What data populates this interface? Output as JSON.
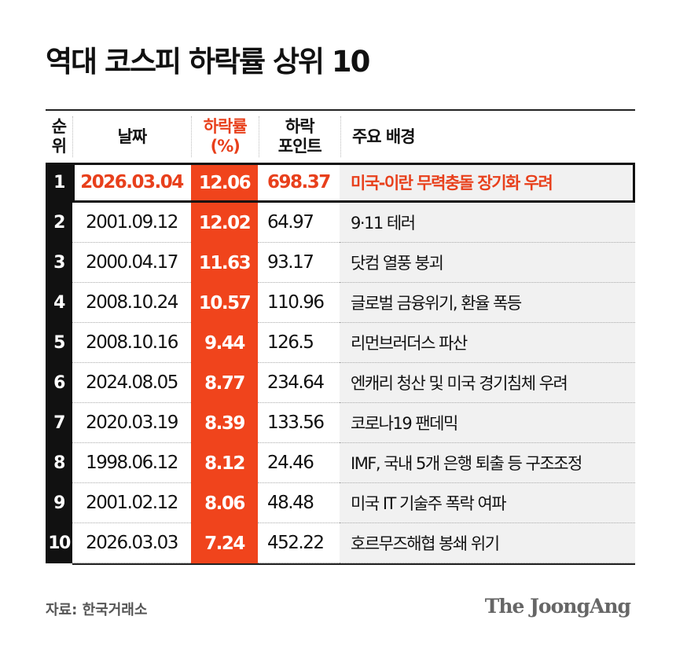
{
  "title": "역대 코스피 하락률 상위 10",
  "chart_data": {
    "type": "table",
    "title": "역대 코스피 하락률 상위 10",
    "columns": [
      "순위",
      "날짜",
      "하락률 (%)",
      "하락 포인트",
      "주요 배경"
    ],
    "header": {
      "rank": "순위",
      "date": "날짜",
      "pct_line1": "하락률",
      "pct_line2": "(%)",
      "pts_line1": "하락",
      "pts_line2": "포인트",
      "background": "주요 배경"
    },
    "rows": [
      {
        "rank": "1",
        "date": "2026.03.04",
        "pct": "12.06",
        "points": "698.37",
        "background": "미국-이란 무력충돌 장기화 우려",
        "highlight": true
      },
      {
        "rank": "2",
        "date": "2001.09.12",
        "pct": "12.02",
        "points": "64.97",
        "background": "9·11 테러"
      },
      {
        "rank": "3",
        "date": "2000.04.17",
        "pct": "11.63",
        "points": "93.17",
        "background": "닷컴 열풍 붕괴"
      },
      {
        "rank": "4",
        "date": "2008.10.24",
        "pct": "10.57",
        "points": "110.96",
        "background": "글로벌 금융위기, 환율 폭등"
      },
      {
        "rank": "5",
        "date": "2008.10.16",
        "pct": "9.44",
        "points": "126.5",
        "background": "리먼브러더스 파산"
      },
      {
        "rank": "6",
        "date": "2024.08.05",
        "pct": "8.77",
        "points": "234.64",
        "background": "엔캐리 청산 및 미국 경기침체 우려"
      },
      {
        "rank": "7",
        "date": "2020.03.19",
        "pct": "8.39",
        "points": "133.56",
        "background": "코로나19 팬데믹"
      },
      {
        "rank": "8",
        "date": "1998.06.12",
        "pct": "8.12",
        "points": "24.46",
        "background": "IMF, 국내 5개 은행 퇴출 등 구조조정"
      },
      {
        "rank": "9",
        "date": "2001.02.12",
        "pct": "8.06",
        "points": "48.48",
        "background": "미국 IT 기술주 폭락 여파"
      },
      {
        "rank": "10",
        "date": "2026.03.03",
        "pct": "7.24",
        "points": "452.22",
        "background": "호르무즈해협 봉쇄 위기"
      }
    ],
    "colors": {
      "accent": "#f0441c",
      "rank_bg": "#111111",
      "background_col": "#f1f1f1"
    }
  },
  "footer": {
    "source": "자료: 한국거래소",
    "logo": "The JoongAng"
  }
}
